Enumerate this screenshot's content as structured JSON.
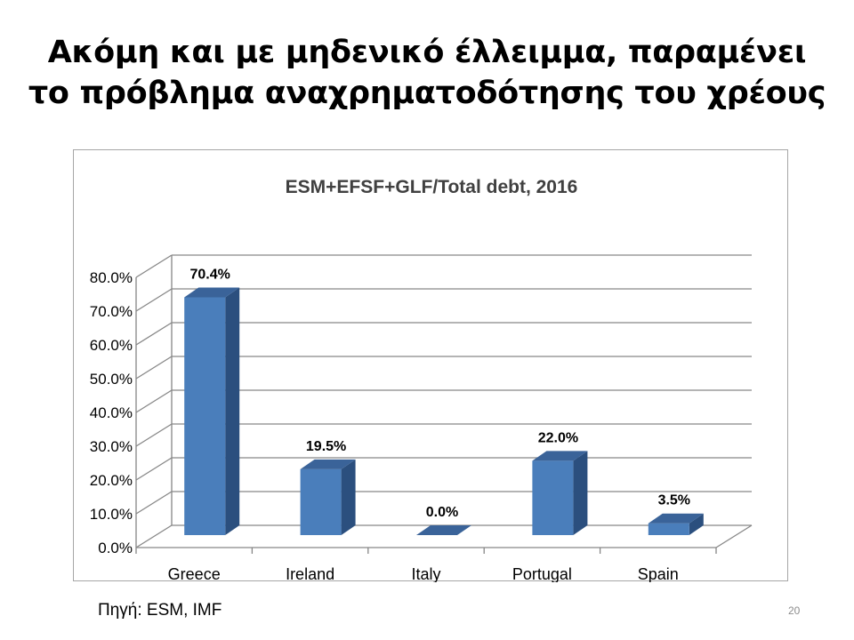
{
  "slide": {
    "title_line1": "Ακόμη και με μηδενικό έλλειμμα, παραμένει",
    "title_line2": "το πρόβλημα αναχρηματοδότησης του χρέους",
    "source": "Πηγή: ESM, IMF",
    "page_number": "20"
  },
  "chart_data": {
    "type": "bar",
    "title": "ESM+EFSF+GLF/Total debt, 2016",
    "categories": [
      "Greece",
      "Ireland",
      "Italy",
      "Portugal",
      "Spain"
    ],
    "values": [
      70.4,
      19.5,
      0.0,
      22.0,
      3.5
    ],
    "data_labels": [
      "70.4%",
      "19.5%",
      "0.0%",
      "22.0%",
      "3.5%"
    ],
    "yticks": [
      "0.0%",
      "10.0%",
      "20.0%",
      "30.0%",
      "40.0%",
      "50.0%",
      "60.0%",
      "70.0%",
      "80.0%"
    ],
    "ylim": [
      0,
      80
    ],
    "grid": true,
    "legend": "none",
    "style": "3d-column",
    "colors": {
      "bar_front": "#4a7ebb",
      "bar_side": "#2b4f7e",
      "bar_top": "#3a6399",
      "gridline": "#868686"
    }
  }
}
